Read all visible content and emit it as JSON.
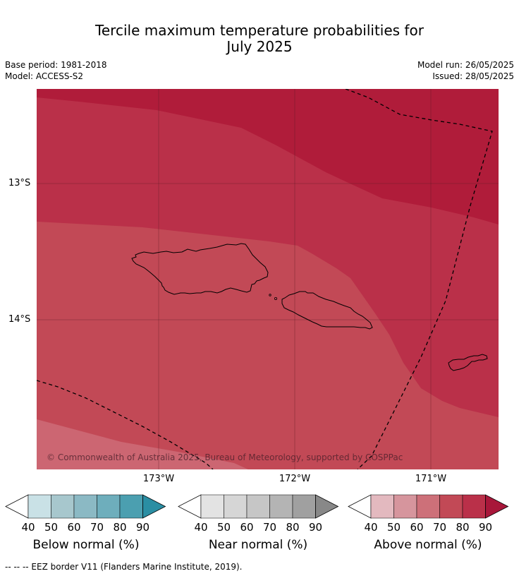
{
  "title": {
    "line1": "Tercile maximum temperature probabilities for",
    "line2": "July 2025"
  },
  "meta": {
    "base_period": "Base period: 1981-2018",
    "model": "Model: ACCESS-S2",
    "model_run": "Model run: 26/05/2025",
    "issued": "Issued: 28/05/2025"
  },
  "map": {
    "lat_labels": [
      "13°S",
      "14°S"
    ],
    "lon_labels": [
      "173°W",
      "172°W",
      "171°W"
    ],
    "copyright": "© Commonwealth of Australia 2025, Bureau of Meteorology, supported by COSPPac",
    "colors": {
      "above_90": "#b01c3a",
      "above_80": "#ba3049",
      "above_70": "#c24956",
      "above_60": "#cc6672"
    }
  },
  "colorbars": [
    {
      "title": "Below normal (%)",
      "ticks": [
        "40",
        "50",
        "60",
        "70",
        "80",
        "90"
      ],
      "colors": [
        "#c9e1e6",
        "#a7c7cd",
        "#8bb9c4",
        "#6eaebc",
        "#4b9fb0",
        "#2a8ea3"
      ]
    },
    {
      "title": "Near normal (%)",
      "ticks": [
        "40",
        "50",
        "60",
        "70",
        "80",
        "90"
      ],
      "colors": [
        "#e3e3e3",
        "#d6d6d6",
        "#c6c6c6",
        "#b4b4b4",
        "#a0a0a0",
        "#888888"
      ]
    },
    {
      "title": "Above normal (%)",
      "ticks": [
        "40",
        "50",
        "60",
        "70",
        "80",
        "90"
      ],
      "colors": [
        "#e3b9bf",
        "#d6959d",
        "#cd7079",
        "#c24956",
        "#ba3049",
        "#a8173a"
      ]
    }
  ],
  "footer": "--  --  -- EEZ border V11 (Flanders Marine Institute, 2019)."
}
